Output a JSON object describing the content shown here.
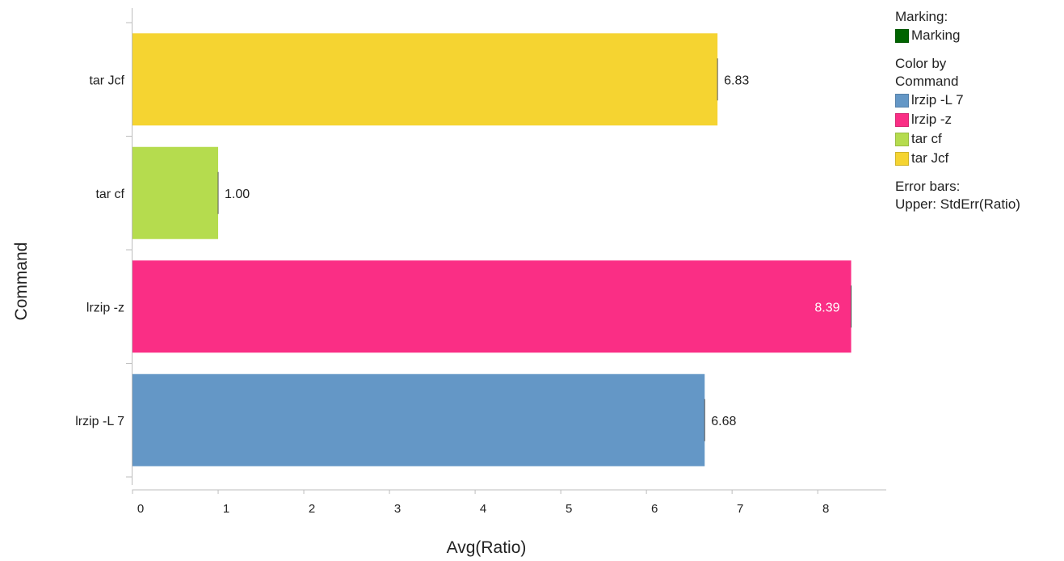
{
  "chart_data": {
    "type": "bar",
    "orientation": "horizontal",
    "xlabel": "Avg(Ratio)",
    "ylabel": "Command",
    "xlim": [
      0,
      8.8
    ],
    "x_ticks": [
      "0",
      "1",
      "2",
      "3",
      "4",
      "5",
      "6",
      "7",
      "8"
    ],
    "categories": [
      "tar Jcf",
      "tar cf",
      "lrzip -z",
      "lrzip -L 7"
    ],
    "values": [
      6.83,
      1.0,
      8.39,
      6.68
    ],
    "value_labels": [
      "6.83",
      "1.00",
      "8.39",
      "6.68"
    ],
    "colors": [
      "#F5D431",
      "#B5DC4E",
      "#FA2E85",
      "#6497C6"
    ],
    "grid": false
  },
  "legend": {
    "marking_title": "Marking:",
    "marking_item": {
      "label": "Marking",
      "color": "#006400"
    },
    "color_title_line1": "Color by",
    "color_title_line2": "Command",
    "items": [
      {
        "label": "lrzip -L 7",
        "color": "#6497C6"
      },
      {
        "label": "lrzip -z",
        "color": "#FA2E85"
      },
      {
        "label": "tar cf",
        "color": "#B5DC4E"
      },
      {
        "label": "tar Jcf",
        "color": "#F5D431"
      }
    ],
    "error_title": "Error bars:",
    "error_text": "Upper: StdErr(Ratio)"
  }
}
